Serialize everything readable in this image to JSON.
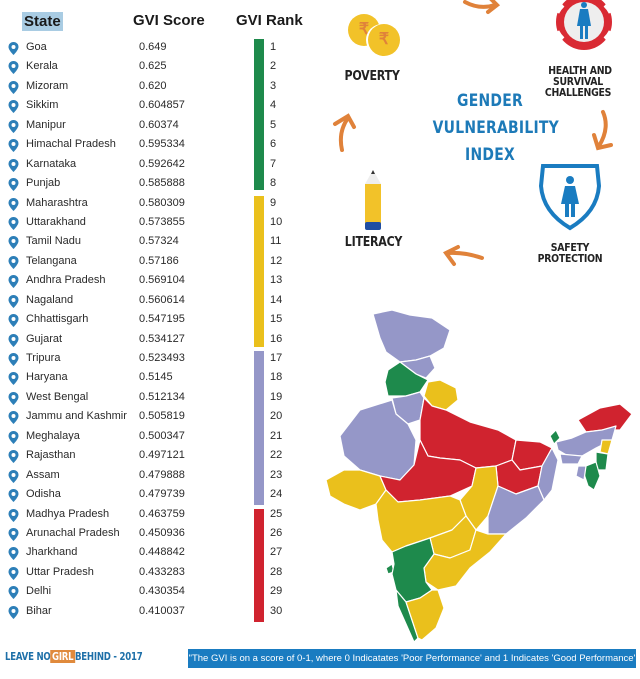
{
  "table": {
    "headers": {
      "state": "State",
      "score": "GVI Score",
      "rank": "GVI Rank"
    },
    "rows": [
      {
        "state": "Goa",
        "score": "0.649",
        "rank": "1"
      },
      {
        "state": "Kerala",
        "score": "0.625",
        "rank": "2"
      },
      {
        "state": "Mizoram",
        "score": "0.620",
        "rank": "3"
      },
      {
        "state": "Sikkim",
        "score": "0.604857",
        "rank": "4"
      },
      {
        "state": "Manipur",
        "score": "0.60374",
        "rank": "5"
      },
      {
        "state": "Himachal Pradesh",
        "score": "0.595334",
        "rank": "6"
      },
      {
        "state": "Karnataka",
        "score": "0.592642",
        "rank": "7"
      },
      {
        "state": "Punjab",
        "score": "0.585888",
        "rank": "8"
      },
      {
        "state": "Maharashtra",
        "score": "0.580309",
        "rank": "9"
      },
      {
        "state": "Uttarakhand",
        "score": "0.573855",
        "rank": "10"
      },
      {
        "state": "Tamil Nadu",
        "score": "0.57324",
        "rank": "11"
      },
      {
        "state": "Telangana",
        "score": "0.57186",
        "rank": "12"
      },
      {
        "state": "Andhra Pradesh",
        "score": "0.569104",
        "rank": "13"
      },
      {
        "state": "Nagaland",
        "score": "0.560614",
        "rank": "14"
      },
      {
        "state": "Chhattisgarh",
        "score": "0.547195",
        "rank": "15"
      },
      {
        "state": "Gujarat",
        "score": "0.534127",
        "rank": "16"
      },
      {
        "state": "Tripura",
        "score": "0.523493",
        "rank": "17"
      },
      {
        "state": "Haryana",
        "score": "0.5145",
        "rank": "18"
      },
      {
        "state": "West Bengal",
        "score": "0.512134",
        "rank": "19"
      },
      {
        "state": "Jammu and Kashmir",
        "score": "0.505819",
        "rank": "20"
      },
      {
        "state": "Meghalaya",
        "score": "0.500347",
        "rank": "21"
      },
      {
        "state": "Rajasthan",
        "score": "0.497121",
        "rank": "22"
      },
      {
        "state": "Assam",
        "score": "0.479888",
        "rank": "23"
      },
      {
        "state": "Odisha",
        "score": "0.479739",
        "rank": "24"
      },
      {
        "state": "Madhya Pradesh",
        "score": "0.463759",
        "rank": "25"
      },
      {
        "state": "Arunachal Pradesh",
        "score": "0.450936",
        "rank": "26"
      },
      {
        "state": "Jharkhand",
        "score": "0.448842",
        "rank": "27"
      },
      {
        "state": "Uttar Pradesh",
        "score": "0.433283",
        "rank": "28"
      },
      {
        "state": "Delhi",
        "score": "0.430354",
        "rank": "29"
      },
      {
        "state": "Bihar",
        "score": "0.410037",
        "rank": "30"
      }
    ],
    "rank_bands": [
      {
        "from": 1,
        "to": 8,
        "color": "#1e8a4c"
      },
      {
        "from": 9,
        "to": 16,
        "color": "#eac01c"
      },
      {
        "from": 17,
        "to": 24,
        "color": "#9597c8"
      },
      {
        "from": 25,
        "to": 30,
        "color": "#d0232f"
      }
    ]
  },
  "cycle": {
    "title_lines": [
      "GENDER",
      "VULNERABILITY",
      "INDEX"
    ],
    "items": {
      "poverty": "POVERTY",
      "health_line1": "HEALTH AND",
      "health_line2": "SURVIVAL CHALLENGES",
      "safety_line1": "SAFETY",
      "safety_line2": "PROTECTION",
      "literacy": "LITERACY"
    },
    "rupee_symbol": "₹"
  },
  "map": {
    "legend_colors": {
      "rank_1_8": "#1e8a4c",
      "rank_9_16": "#eac01c",
      "rank_17_24": "#9597c8",
      "rank_25_30": "#d0232f"
    }
  },
  "footer": {
    "left_pre": "LEAVE NO",
    "left_girl": "GIRL",
    "left_post": "BEHIND - 2017",
    "note": "\"The GVI is on a score of 0-1, where 0 Indicatates 'Poor Performance' and 1 Indicates 'Good Performance'"
  },
  "chart_data": {
    "type": "table",
    "title": "Gender Vulnerability Index",
    "columns": [
      "State",
      "GVI Score",
      "GVI Rank"
    ],
    "categories": [
      "Goa",
      "Kerala",
      "Mizoram",
      "Sikkim",
      "Manipur",
      "Himachal Pradesh",
      "Karnataka",
      "Punjab",
      "Maharashtra",
      "Uttarakhand",
      "Tamil Nadu",
      "Telangana",
      "Andhra Pradesh",
      "Nagaland",
      "Chhattisgarh",
      "Gujarat",
      "Tripura",
      "Haryana",
      "West Bengal",
      "Jammu and Kashmir",
      "Meghalaya",
      "Rajasthan",
      "Assam",
      "Odisha",
      "Madhya Pradesh",
      "Arunachal Pradesh",
      "Jharkhand",
      "Uttar Pradesh",
      "Delhi",
      "Bihar"
    ],
    "series": [
      {
        "name": "GVI Score",
        "values": [
          0.649,
          0.625,
          0.62,
          0.604857,
          0.60374,
          0.595334,
          0.592642,
          0.585888,
          0.580309,
          0.573855,
          0.57324,
          0.57186,
          0.569104,
          0.560614,
          0.547195,
          0.534127,
          0.523493,
          0.5145,
          0.512134,
          0.505819,
          0.500347,
          0.497121,
          0.479888,
          0.479739,
          0.463759,
          0.450936,
          0.448842,
          0.433283,
          0.430354,
          0.410037
        ]
      },
      {
        "name": "GVI Rank",
        "values": [
          1,
          2,
          3,
          4,
          5,
          6,
          7,
          8,
          9,
          10,
          11,
          12,
          13,
          14,
          15,
          16,
          17,
          18,
          19,
          20,
          21,
          22,
          23,
          24,
          25,
          26,
          27,
          28,
          29,
          30
        ]
      }
    ],
    "color_bands": [
      {
        "ranks": "1-8",
        "color": "green"
      },
      {
        "ranks": "9-16",
        "color": "yellow"
      },
      {
        "ranks": "17-24",
        "color": "lavender"
      },
      {
        "ranks": "25-30",
        "color": "red"
      }
    ],
    "annotations": [
      "The GVI is on a score of 0-1, where 0 Indicatates 'Poor Performance' and 1 Indicates 'Good Performance'",
      "LEAVE NO GIRL BEHIND - 2017"
    ]
  }
}
